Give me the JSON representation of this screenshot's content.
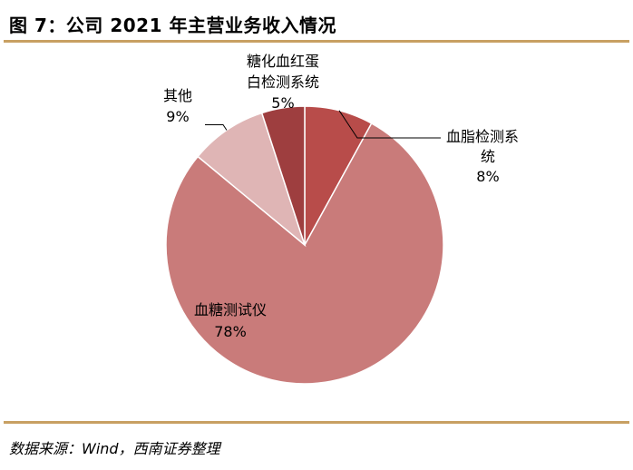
{
  "figure": {
    "title": "图 7：公司 2021 年主营业务收入情况",
    "source": "数据来源：Wind，西南证券整理",
    "rule_color": "#c8a062"
  },
  "chart_data": {
    "type": "pie",
    "title": "",
    "start_angle_deg": 0,
    "direction": "clockwise",
    "slices": [
      {
        "name_lines": [
          "血脂检测系",
          "统"
        ],
        "value": 8,
        "label": "8%",
        "color": "#b84c4a",
        "label_mode": "outside-right"
      },
      {
        "name_lines": [
          "血糖测试仪"
        ],
        "value": 78,
        "label": "78%",
        "color": "#c97b7a",
        "label_mode": "inside"
      },
      {
        "name_lines": [
          "其他"
        ],
        "value": 9,
        "label": "9%",
        "color": "#dfb5b5",
        "label_mode": "outside-left"
      },
      {
        "name_lines": [
          "糖化血红蛋",
          "白检测系统"
        ],
        "value": 5,
        "label": "5%",
        "color": "#9e3e3f",
        "label_mode": "outside-top"
      }
    ]
  }
}
